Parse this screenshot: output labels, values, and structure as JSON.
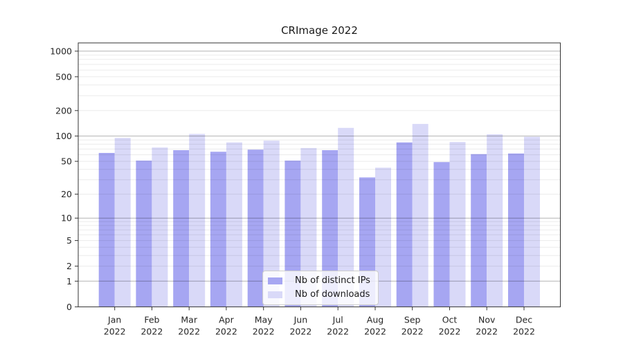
{
  "chart_data": {
    "type": "bar",
    "title": "CRImage 2022",
    "categories": [
      "Jan",
      "Feb",
      "Mar",
      "Apr",
      "May",
      "Jun",
      "Jul",
      "Aug",
      "Sep",
      "Oct",
      "Nov",
      "Dec"
    ],
    "category_year": "2022",
    "series": [
      {
        "name": "Nb of distinct IPs",
        "color": "#a6a6f2",
        "values": [
          63,
          51,
          68,
          65,
          69,
          51,
          68,
          32,
          84,
          49,
          61,
          62
        ]
      },
      {
        "name": "Nb of downloads",
        "color": "#d9d9f8",
        "values": [
          95,
          73,
          106,
          84,
          88,
          72,
          125,
          42,
          139,
          85,
          105,
          98
        ]
      }
    ],
    "yscale": "log1p",
    "yticks": [
      0,
      1,
      2,
      5,
      10,
      20,
      50,
      100,
      200,
      500,
      1000
    ],
    "major_grid_values": [
      1,
      10,
      100,
      1000
    ],
    "ylim": [
      0,
      1250
    ],
    "xlabel": "",
    "ylabel": "",
    "grid": "on",
    "legend_position": "bottom-center"
  },
  "legend": {
    "items": [
      {
        "label": "Nb of distinct IPs"
      },
      {
        "label": "Nb of downloads"
      }
    ]
  },
  "colors": {
    "bar_ips": "#a6a6f2",
    "bar_downloads": "#d9d9f8",
    "grid_major": "rgba(0,0,0,0.30)",
    "grid_minor": "rgba(0,0,0,0.08)",
    "spine": "#333333",
    "tick_text": "#262626"
  }
}
